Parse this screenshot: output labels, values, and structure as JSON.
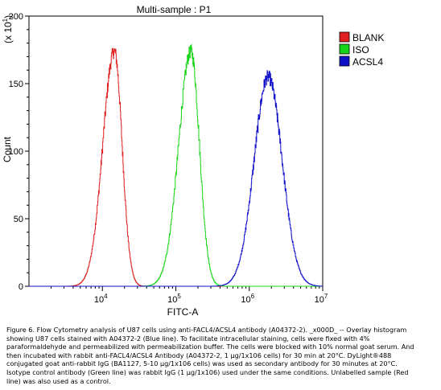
{
  "chart_data": {
    "type": "histogram",
    "title": "Multi-sample : P1",
    "xlabel": "FITC-A",
    "ylabel": "Count",
    "y_multiplier": "(x 10",
    "y_multiplier_exp": "1",
    "y_multiplier_close": ")",
    "x_scale": "log",
    "xlim": [
      1000,
      10000000
    ],
    "ylim": [
      0,
      200
    ],
    "x_ticks": [
      {
        "value": 10000,
        "base": "10",
        "exp": "4"
      },
      {
        "value": 100000,
        "base": "10",
        "exp": "5"
      },
      {
        "value": 1000000,
        "base": "10",
        "exp": "6"
      },
      {
        "value": 10000000,
        "base": "10",
        "exp": "7"
      }
    ],
    "y_ticks": [
      {
        "value": 0,
        "label": "0"
      },
      {
        "value": 50,
        "label": "50"
      },
      {
        "value": 100,
        "label": "100"
      },
      {
        "value": 150,
        "label": "150"
      },
      {
        "value": 200,
        "label": "200"
      }
    ],
    "legend_position": "top-right",
    "series": [
      {
        "name": "BLANK",
        "color": "#e02020",
        "peak_x": 14500,
        "peak_y": 174,
        "sigma_log": 0.105,
        "tail_ratio": 1.5
      },
      {
        "name": "ISO",
        "color": "#18d418",
        "peak_x": 160000,
        "peak_y": 174,
        "sigma_log": 0.115,
        "tail_ratio": 1.45
      },
      {
        "name": "ACSL4",
        "color": "#1010c8",
        "peak_x": 1800000,
        "peak_y": 155,
        "sigma_log": 0.19,
        "tail_ratio": 1.0
      }
    ]
  },
  "caption": {
    "lines": [
      "Figure 6. Flow Cytometry analysis of U87 cells using anti-FACL4/ACSL4 antibody (A04372-2). _x000D_ -- Overlay histogram",
      "showing U87 cells stained with A04372-2 (Blue line). To facilitate intracellular staining, cells were fixed with 4%",
      "paraformaldehyde and permeabilized with permeabilization buffer. The cells were blocked with 10% normal goat serum. And",
      "then incubated with rabbit anti-FACL4/ACSL4 Antibody (A04372-2, 1 µg/1x106 cells) for 30 min at 20°C. DyLight®488",
      "conjugated goat anti-rabbit IgG (BA1127, 5-10 µg/1x106 cells) was used as secondary antibody for 30 minutes at 20°C.",
      "Isotype control antibody (Green line) was rabbit IgG (1 µg/1x106) used under the same conditions. Unlabelled sample (Red",
      "line) was also used as a control."
    ]
  }
}
